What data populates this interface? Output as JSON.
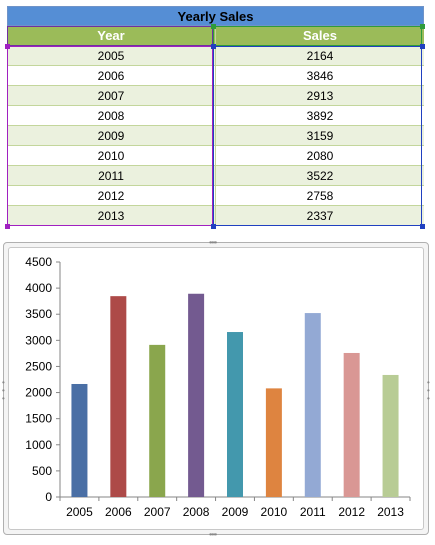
{
  "sheet": {
    "title": "Yearly Sales",
    "headers": [
      "Year",
      "Sales"
    ],
    "rows": [
      [
        "2005",
        "2164"
      ],
      [
        "2006",
        "3846"
      ],
      [
        "2007",
        "2913"
      ],
      [
        "2008",
        "3892"
      ],
      [
        "2009",
        "3159"
      ],
      [
        "2010",
        "2080"
      ],
      [
        "2011",
        "3522"
      ],
      [
        "2012",
        "2758"
      ],
      [
        "2013",
        "2337"
      ]
    ],
    "colors": {
      "title_bg": "#558ed5",
      "header_bg": "#9bbb59",
      "band": "#ebf1de"
    }
  },
  "chart_data": {
    "type": "bar",
    "title": "",
    "xlabel": "",
    "ylabel": "",
    "categories": [
      "2005",
      "2006",
      "2007",
      "2008",
      "2009",
      "2010",
      "2011",
      "2012",
      "2013"
    ],
    "values": [
      2164,
      3846,
      2913,
      3892,
      3159,
      2080,
      3522,
      2758,
      2337
    ],
    "bar_colors": [
      "#4a6fa5",
      "#ad4a48",
      "#8aa64d",
      "#735a90",
      "#4398ad",
      "#de8440",
      "#93a9d4",
      "#d99794",
      "#b8cc95"
    ],
    "ylim": [
      0,
      4500
    ],
    "yticks": [
      "0",
      "500",
      "1000",
      "1500",
      "2000",
      "2500",
      "3000",
      "3500",
      "4000",
      "4500"
    ],
    "grid": false,
    "legend": "none"
  }
}
